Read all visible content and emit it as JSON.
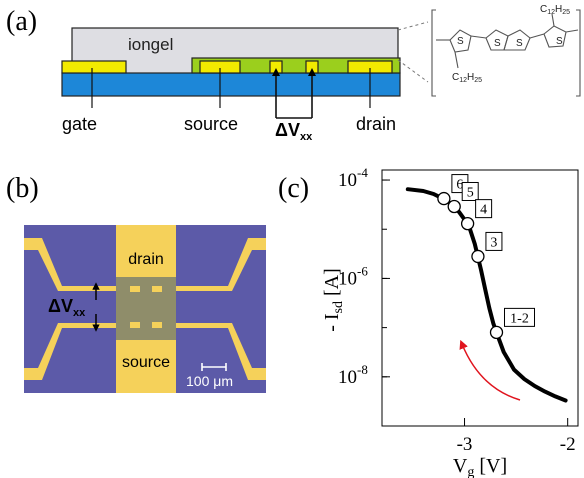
{
  "panel_a": {
    "label": "(a)",
    "iongel_label": "iongel",
    "gate_label": "gate",
    "source_label": "source",
    "delta_label": "ΔV",
    "delta_sub": "xx",
    "drain_label": "drain",
    "molecule": {
      "top_sub_label": "C",
      "top_sub_index": "12",
      "top_sub_h": "H",
      "top_sub_hindex": "25",
      "bottom_sub_label": "C",
      "bottom_sub_index": "12",
      "bottom_sub_h": "H",
      "bottom_sub_hindex": "25",
      "sulfur": "S"
    },
    "colors": {
      "iongel": "#dedee3",
      "substrate": "#1d87d8",
      "polymer": "#9bcf1d",
      "electrode": "#f2ea00"
    }
  },
  "panel_b": {
    "label": "(b)",
    "drain_label": "drain",
    "source_label": "source",
    "delta_label": "ΔV",
    "delta_sub": "xx",
    "scale_label": "100 μm",
    "colors": {
      "background": "#5c5aa8",
      "channel": "#8f8d6a",
      "contact": "#f5d15a"
    }
  },
  "panel_c": {
    "label": "(c)",
    "y_label_prefix": "- I",
    "y_label_sub": "sd",
    "y_label_unit": " [A]",
    "x_label_prefix": "V",
    "x_label_sub": "g",
    "x_label_unit": " [V]",
    "arrow_color": "#e0141e"
  },
  "chart_data": {
    "type": "line",
    "title": "",
    "xlabel": "Vg [V]",
    "ylabel": "- Isd [A]",
    "xlim": [
      -3.8,
      -1.9
    ],
    "ylim": [
      1e-09,
      0.00016
    ],
    "yscale": "log",
    "x_ticks": [
      -3,
      -2
    ],
    "y_ticks": [
      {
        "value": 1e-08,
        "base": "10",
        "exp": "-8"
      },
      {
        "value": 1e-06,
        "base": "10",
        "exp": "-6"
      },
      {
        "value": 0.0001,
        "base": "10",
        "exp": "-4"
      }
    ],
    "series": [
      {
        "x": [
          -3.55,
          -3.4,
          -3.3,
          -3.22,
          -3.12,
          -3.05,
          -2.96,
          -2.9,
          -2.84,
          -2.8,
          -2.76,
          -2.72,
          -2.68,
          -2.62,
          -2.52,
          -2.42,
          -2.32,
          -2.22,
          -2.12,
          -2.02
        ],
        "y": [
          6.5e-05,
          6e-05,
          5.2e-05,
          4.3e-05,
          3.2e-05,
          2.2e-05,
          1.2e-05,
          5e-06,
          1.5e-06,
          6e-07,
          2.5e-07,
          1.2e-07,
          7e-08,
          3.2e-08,
          1.4e-08,
          9e-09,
          6.5e-09,
          5e-09,
          4e-09,
          3.3e-09
        ]
      }
    ],
    "points": [
      {
        "label": "6",
        "x": -3.2,
        "y": 4.2e-05
      },
      {
        "label": "5",
        "x": -3.1,
        "y": 2.9e-05
      },
      {
        "label": "4",
        "x": -2.97,
        "y": 1.3e-05
      },
      {
        "label": "3",
        "x": -2.87,
        "y": 2.8e-06
      },
      {
        "label": "1-2",
        "x": -2.69,
        "y": 8e-08
      }
    ]
  }
}
